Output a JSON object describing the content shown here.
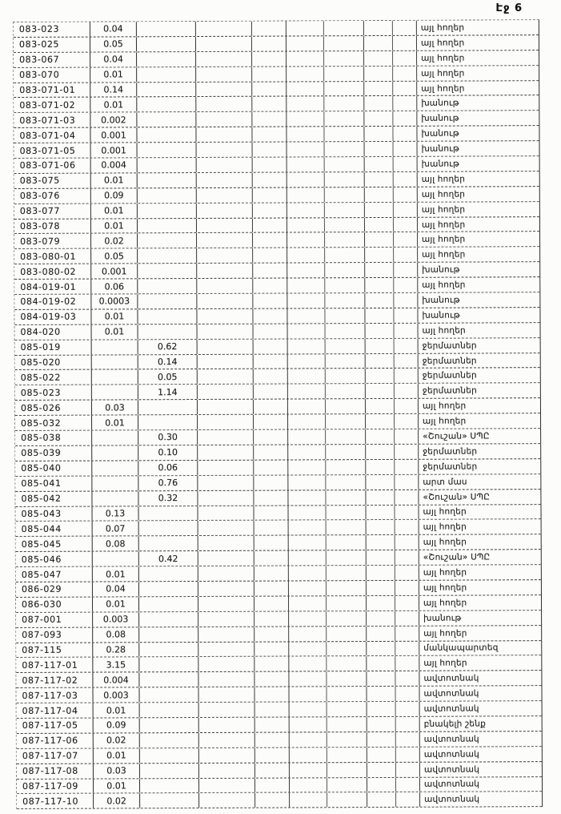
{
  "page": {
    "header": "Էջ 6"
  },
  "table": {
    "rows": [
      {
        "code": "083-023",
        "area1": "0.04",
        "area2": "",
        "use": "այլ հողեր"
      },
      {
        "code": "083-025",
        "area1": "0.05",
        "area2": "",
        "use": "այլ հողեր"
      },
      {
        "code": "083-067",
        "area1": "0.04",
        "area2": "",
        "use": "այլ հողեր"
      },
      {
        "code": "083-070",
        "area1": "0.01",
        "area2": "",
        "use": "այլ հողեր"
      },
      {
        "code": "083-071-01",
        "area1": "0.14",
        "area2": "",
        "use": "այլ հողեր"
      },
      {
        "code": "083-071-02",
        "area1": "0.01",
        "area2": "",
        "use": "խանութ"
      },
      {
        "code": "083-071-03",
        "area1": "0.002",
        "area2": "",
        "use": "խանութ"
      },
      {
        "code": "083-071-04",
        "area1": "0.001",
        "area2": "",
        "use": "խանութ"
      },
      {
        "code": "083-071-05",
        "area1": "0.001",
        "area2": "",
        "use": "խանութ"
      },
      {
        "code": "083-071-06",
        "area1": "0.004",
        "area2": "",
        "use": "խանութ"
      },
      {
        "code": "083-075",
        "area1": "0.01",
        "area2": "",
        "use": "այլ հողեր"
      },
      {
        "code": "083-076",
        "area1": "0.09",
        "area2": "",
        "use": "այլ հողեր"
      },
      {
        "code": "083-077",
        "area1": "0.01",
        "area2": "",
        "use": "այլ հողեր"
      },
      {
        "code": "083-078",
        "area1": "0.01",
        "area2": "",
        "use": "այլ հողեր"
      },
      {
        "code": "083-079",
        "area1": "0.02",
        "area2": "",
        "use": "այլ հողեր"
      },
      {
        "code": "083-080-01",
        "area1": "0.05",
        "area2": "",
        "use": "այլ հողեր"
      },
      {
        "code": "083-080-02",
        "area1": "0.001",
        "area2": "",
        "use": "խանութ"
      },
      {
        "code": "084-019-01",
        "area1": "0.06",
        "area2": "",
        "use": "այլ հողեր"
      },
      {
        "code": "084-019-02",
        "area1": "0.0003",
        "area2": "",
        "use": "խանութ"
      },
      {
        "code": "084-019-03",
        "area1": "0.01",
        "area2": "",
        "use": "խանութ"
      },
      {
        "code": "084-020",
        "area1": "0.01",
        "area2": "",
        "use": "այլ հողեր"
      },
      {
        "code": "085-019",
        "area1": "",
        "area2": "0.62",
        "use": "ջերմատներ"
      },
      {
        "code": "085-020",
        "area1": "",
        "area2": "0.14",
        "use": "ջերմատներ"
      },
      {
        "code": "085-022",
        "area1": "",
        "area2": "0.05",
        "use": "ջերմատներ"
      },
      {
        "code": "085-023",
        "area1": "",
        "area2": "1.14",
        "use": "ջերմատներ"
      },
      {
        "code": "085-026",
        "area1": "0.03",
        "area2": "",
        "use": "այլ հողեր"
      },
      {
        "code": "085-032",
        "area1": "0.01",
        "area2": "",
        "use": "այլ հողեր"
      },
      {
        "code": "085-038",
        "area1": "",
        "area2": "0.30",
        "use": "«Շուշան» ՍՊԸ"
      },
      {
        "code": "085-039",
        "area1": "",
        "area2": "0.10",
        "use": "ջերմատներ"
      },
      {
        "code": "085-040",
        "area1": "",
        "area2": "0.06",
        "use": "ջերմատներ"
      },
      {
        "code": "085-041",
        "area1": "",
        "area2": "0.76",
        "use": "արտ մաս"
      },
      {
        "code": "085-042",
        "area1": "",
        "area2": "0.32",
        "use": "«Շուշան» ՍՊԸ"
      },
      {
        "code": "085-043",
        "area1": "0.13",
        "area2": "",
        "use": "այլ հողեր"
      },
      {
        "code": "085-044",
        "area1": "0.07",
        "area2": "",
        "use": "այլ հողեր"
      },
      {
        "code": "085-045",
        "area1": "0.08",
        "area2": "",
        "use": "այլ հողեր"
      },
      {
        "code": "085-046",
        "area1": "",
        "area2": "0.42",
        "use": "«Շուշան» ՍՊԸ"
      },
      {
        "code": "085-047",
        "area1": "0.01",
        "area2": "",
        "use": "այլ հողեր"
      },
      {
        "code": "086-029",
        "area1": "0.04",
        "area2": "",
        "use": "այլ հողեր"
      },
      {
        "code": "086-030",
        "area1": "0.01",
        "area2": "",
        "use": "այլ հողեր"
      },
      {
        "code": "087-001",
        "area1": "0.003",
        "area2": "",
        "use": "խանութ"
      },
      {
        "code": "087-093",
        "area1": "0.08",
        "area2": "",
        "use": "այլ հողեր"
      },
      {
        "code": "087-115",
        "area1": "0.28",
        "area2": "",
        "use": "մանկապարտեզ"
      },
      {
        "code": "087-117-01",
        "area1": "3.15",
        "area2": "",
        "use": "այլ հողեր"
      },
      {
        "code": "087-117-02",
        "area1": "0.004",
        "area2": "",
        "use": "ավտոտնակ"
      },
      {
        "code": "087-117-03",
        "area1": "0.003",
        "area2": "",
        "use": "ավտոտնակ"
      },
      {
        "code": "087-117-04",
        "area1": "0.01",
        "area2": "",
        "use": "ավտոտնակ"
      },
      {
        "code": "087-117-05",
        "area1": "0.09",
        "area2": "",
        "use": "բնակելի շենք"
      },
      {
        "code": "087-117-06",
        "area1": "0.02",
        "area2": "",
        "use": "ավտոտնակ"
      },
      {
        "code": "087-117-07",
        "area1": "0.01",
        "area2": "",
        "use": "ավտոտնակ"
      },
      {
        "code": "087-117-08",
        "area1": "0.03",
        "area2": "",
        "use": "ավտոտնակ"
      },
      {
        "code": "087-117-09",
        "area1": "0.01",
        "area2": "",
        "use": "ավտոտնակ"
      },
      {
        "code": "087-117-10",
        "area1": "0.02",
        "area2": "",
        "use": "ավտոտնակ"
      }
    ]
  }
}
